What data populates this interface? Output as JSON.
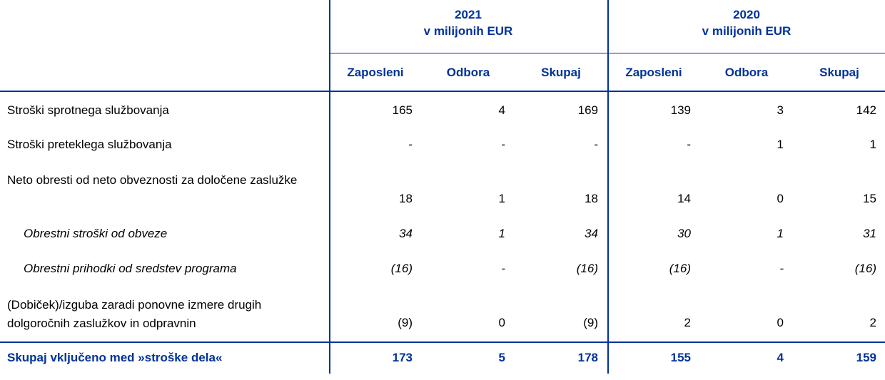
{
  "table": {
    "groups": [
      {
        "year": "2021",
        "unit": "v milijonih EUR"
      },
      {
        "year": "2020",
        "unit": "v milijonih EUR"
      }
    ],
    "columns": [
      "Zaposleni",
      "Odbora",
      "Skupaj",
      "Zaposleni",
      "Odbora",
      "Skupaj"
    ],
    "rows": [
      {
        "label": "Stroški sprotnega službovanja",
        "values": [
          165,
          4,
          169,
          139,
          3,
          142
        ]
      },
      {
        "label": "Stroški preteklega službovanja",
        "values": [
          "-",
          "-",
          "-",
          "-",
          1,
          1
        ]
      },
      {
        "label": "Neto obresti od neto obveznosti za določene zaslužke",
        "values": [
          18,
          1,
          18,
          14,
          0,
          15
        ]
      },
      {
        "label": "Obrestni stroški od obveze",
        "values": [
          34,
          1,
          34,
          30,
          1,
          31
        ],
        "italic": true
      },
      {
        "label": "Obrestni prihodki od sredstev programa",
        "values": [
          "(16)",
          "-",
          "(16)",
          "(16)",
          "-",
          "(16)"
        ],
        "italic": true
      },
      {
        "label": "(Dobiček)/izguba zaradi ponovne izmere drugih dolgoročnih zaslužkov in odpravnin",
        "values": [
          "(9)",
          0,
          "(9)",
          2,
          0,
          2
        ]
      },
      {
        "label": "Skupaj vključeno med »stroške dela«",
        "values": [
          173,
          5,
          178,
          155,
          4,
          159
        ],
        "total": true
      }
    ]
  }
}
